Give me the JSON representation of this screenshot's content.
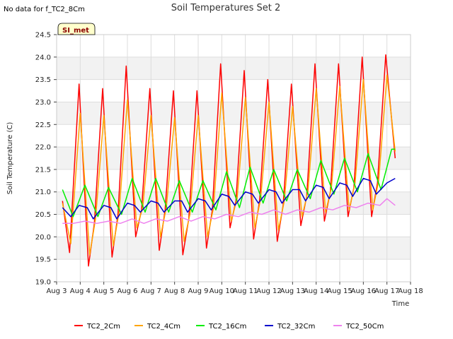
{
  "header": {
    "no_data_text": "No data for f_TC2_8Cm",
    "site_badge": "SI_met"
  },
  "chart_data": {
    "type": "line",
    "title": "Soil Temperatures Set 2",
    "xlabel": "Time",
    "ylabel": "Soil Temperature (C)",
    "xlim": [
      3,
      18
    ],
    "ylim": [
      19.0,
      24.5
    ],
    "x_ticks": [
      3,
      4,
      5,
      6,
      7,
      8,
      9,
      10,
      11,
      12,
      13,
      14,
      15,
      16,
      17,
      18
    ],
    "x_tick_labels": [
      "Aug 3",
      "Aug 4",
      "Aug 5",
      "Aug 6",
      "Aug 7",
      "Aug 8",
      "Aug 9",
      "Aug 10",
      "Aug 11",
      "Aug 12",
      "Aug 13",
      "Aug 14",
      "Aug 15",
      "Aug 16",
      "Aug 17",
      "Aug 18"
    ],
    "y_ticks": [
      19.0,
      19.5,
      20.0,
      20.5,
      21.0,
      21.5,
      22.0,
      22.5,
      23.0,
      23.5,
      24.0,
      24.5
    ],
    "y_tick_labels": [
      "19.0",
      "19.5",
      "20.0",
      "20.5",
      "21.0",
      "21.5",
      "22.0",
      "22.5",
      "23.0",
      "23.5",
      "24.0",
      "24.5"
    ],
    "grid": true,
    "background_bands": true,
    "legend_position": "bottom",
    "series": [
      {
        "name": "TC2_2Cm",
        "color": "#ff0000",
        "x": [
          3.25,
          3.55,
          3.95,
          4.35,
          4.6,
          4.95,
          5.35,
          5.6,
          5.95,
          6.35,
          6.6,
          6.95,
          7.35,
          7.6,
          7.95,
          8.35,
          8.6,
          8.95,
          9.35,
          9.6,
          9.95,
          10.35,
          10.6,
          10.95,
          11.35,
          11.6,
          11.95,
          12.35,
          12.6,
          12.95,
          13.35,
          13.6,
          13.95,
          14.35,
          14.6,
          14.95,
          15.35,
          15.6,
          15.95,
          16.35,
          16.6,
          16.95,
          17.35
        ],
        "y": [
          20.8,
          19.65,
          23.4,
          19.35,
          20.3,
          23.3,
          19.55,
          20.5,
          23.8,
          20.0,
          20.6,
          23.3,
          19.7,
          20.6,
          23.25,
          19.6,
          20.4,
          23.25,
          19.75,
          20.6,
          23.85,
          20.2,
          20.8,
          23.7,
          19.95,
          20.8,
          23.5,
          19.9,
          20.7,
          23.4,
          20.25,
          20.9,
          23.85,
          20.35,
          21.0,
          23.85,
          20.45,
          21.1,
          24.0,
          20.45,
          21.2,
          24.05,
          21.75
        ]
      },
      {
        "name": "TC2_4Cm",
        "color": "#ffa500",
        "x": [
          3.25,
          3.6,
          4.0,
          4.4,
          4.65,
          5.0,
          5.4,
          5.65,
          6.0,
          6.4,
          6.65,
          7.0,
          7.4,
          7.65,
          8.0,
          8.4,
          8.65,
          9.0,
          9.4,
          9.65,
          10.0,
          10.4,
          10.65,
          11.0,
          11.4,
          11.65,
          12.0,
          12.4,
          12.65,
          13.0,
          13.4,
          13.65,
          14.0,
          14.4,
          14.65,
          15.0,
          15.4,
          15.65,
          16.0,
          16.4,
          16.65,
          17.0,
          17.35
        ],
        "y": [
          20.75,
          19.85,
          22.75,
          19.6,
          20.4,
          22.7,
          19.8,
          20.55,
          23.05,
          20.2,
          20.65,
          22.7,
          20.0,
          20.65,
          22.65,
          19.9,
          20.5,
          22.7,
          20.0,
          20.65,
          23.2,
          20.35,
          20.85,
          23.1,
          20.2,
          20.85,
          23.0,
          20.15,
          20.8,
          22.9,
          20.45,
          21.0,
          23.3,
          20.55,
          21.1,
          23.35,
          20.6,
          21.2,
          23.5,
          20.6,
          21.25,
          23.6,
          21.9
        ]
      },
      {
        "name": "TC2_16Cm",
        "color": "#00ee00",
        "x": [
          3.25,
          3.7,
          4.2,
          4.75,
          5.2,
          5.75,
          6.2,
          6.75,
          7.2,
          7.75,
          8.2,
          8.75,
          9.2,
          9.75,
          10.2,
          10.75,
          11.2,
          11.75,
          12.2,
          12.75,
          13.2,
          13.75,
          14.2,
          14.75,
          15.2,
          15.75,
          16.2,
          16.75,
          17.2,
          17.35
        ],
        "y": [
          21.05,
          20.45,
          21.15,
          20.45,
          21.1,
          20.5,
          21.3,
          20.55,
          21.3,
          20.55,
          21.25,
          20.55,
          21.25,
          20.6,
          21.45,
          20.65,
          21.55,
          20.75,
          21.5,
          20.8,
          21.5,
          20.85,
          21.7,
          20.95,
          21.75,
          21.0,
          21.85,
          21.05,
          21.95,
          21.95
        ]
      },
      {
        "name": "TC2_32Cm",
        "color": "#0000cc",
        "x": [
          3.25,
          3.6,
          3.95,
          4.3,
          4.55,
          5.0,
          5.3,
          5.55,
          6.0,
          6.3,
          6.55,
          7.0,
          7.3,
          7.55,
          8.0,
          8.3,
          8.55,
          9.0,
          9.3,
          9.55,
          10.0,
          10.3,
          10.55,
          11.0,
          11.3,
          11.55,
          12.0,
          12.3,
          12.55,
          13.0,
          13.3,
          13.55,
          14.0,
          14.3,
          14.55,
          15.0,
          15.3,
          15.55,
          16.0,
          16.3,
          16.55,
          17.0,
          17.35
        ],
        "y": [
          20.65,
          20.45,
          20.7,
          20.65,
          20.4,
          20.7,
          20.65,
          20.4,
          20.75,
          20.7,
          20.55,
          20.8,
          20.75,
          20.55,
          20.8,
          20.8,
          20.55,
          20.85,
          20.8,
          20.6,
          20.95,
          20.9,
          20.7,
          21.0,
          20.95,
          20.75,
          21.05,
          21.0,
          20.75,
          21.05,
          21.05,
          20.8,
          21.15,
          21.1,
          20.85,
          21.2,
          21.15,
          20.9,
          21.3,
          21.25,
          20.95,
          21.2,
          21.3
        ]
      },
      {
        "name": "TC2_50Cm",
        "color": "#ee82ee",
        "x": [
          3.25,
          3.7,
          4.2,
          4.7,
          5.2,
          5.7,
          6.2,
          6.7,
          7.2,
          7.7,
          8.2,
          8.7,
          9.2,
          9.7,
          10.2,
          10.7,
          11.2,
          11.7,
          12.2,
          12.7,
          13.2,
          13.7,
          14.2,
          14.7,
          15.2,
          15.7,
          16.2,
          16.7,
          17.0,
          17.35
        ],
        "y": [
          20.3,
          20.3,
          20.35,
          20.3,
          20.35,
          20.3,
          20.4,
          20.3,
          20.4,
          20.35,
          20.45,
          20.35,
          20.45,
          20.4,
          20.5,
          20.45,
          20.55,
          20.5,
          20.6,
          20.5,
          20.6,
          20.55,
          20.65,
          20.6,
          20.7,
          20.65,
          20.75,
          20.7,
          20.85,
          20.7
        ]
      }
    ]
  }
}
